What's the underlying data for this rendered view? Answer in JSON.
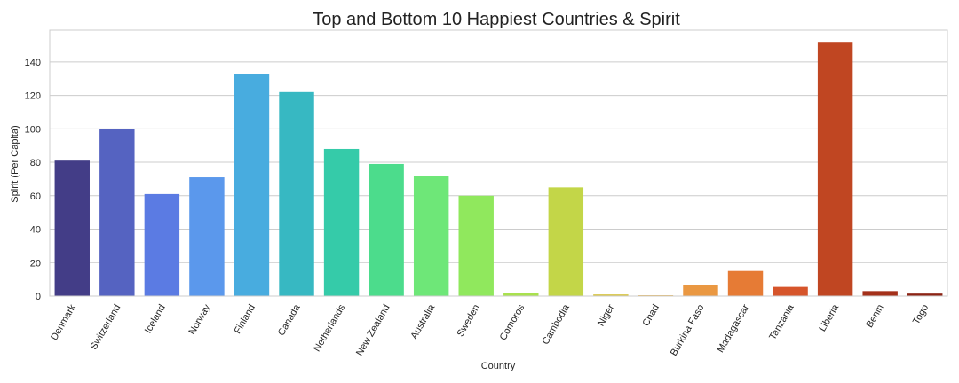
{
  "chart_data": {
    "type": "bar",
    "title": "Top and Bottom 10 Happiest Countries & Spirit",
    "xlabel": "Country",
    "ylabel": "Spirit (Per Capita)",
    "categories": [
      "Denmark",
      "Switzerland",
      "Iceland",
      "Norway",
      "Finland",
      "Canada",
      "Netherlands",
      "New Zealand",
      "Australia",
      "Sweden",
      "Comoros",
      "Cambodia",
      "Niger",
      "Chad",
      "Burkina Faso",
      "Madagascar",
      "Tanzania",
      "Liberia",
      "Benin",
      "Togo"
    ],
    "values": [
      81,
      100,
      61,
      71,
      133,
      122,
      88,
      79,
      72,
      60,
      2,
      65,
      1,
      0.5,
      6.5,
      15,
      5.5,
      152,
      3,
      1.5
    ],
    "colors": [
      "#433d87",
      "#5563c1",
      "#5b7be3",
      "#5b98ec",
      "#48acdf",
      "#37b8c2",
      "#35cba9",
      "#4cdc8c",
      "#6ee778",
      "#90e85d",
      "#a9e14e",
      "#c3d648",
      "#d7c545",
      "#e5b047",
      "#ea9842",
      "#e67b35",
      "#d6552b",
      "#c04622",
      "#a4301a",
      "#8c2314"
    ],
    "yticks": [
      0,
      20,
      40,
      60,
      80,
      100,
      120,
      140
    ],
    "ylim": [
      0,
      159
    ],
    "grid": true
  }
}
